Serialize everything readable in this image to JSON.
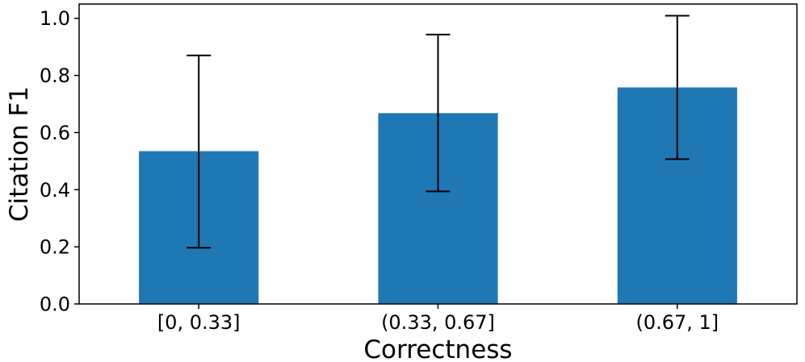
{
  "chart_data": {
    "type": "bar",
    "title": "",
    "xlabel": "Correctness",
    "ylabel": "Citation F1",
    "categories": [
      "[0, 0.33]",
      "(0.33, 0.67]",
      "(0.67, 1]"
    ],
    "values": [
      0.535,
      0.668,
      0.758
    ],
    "error_low": [
      0.197,
      0.394,
      0.507
    ],
    "error_high": [
      0.87,
      0.943,
      1.009
    ],
    "ylim": [
      0.0,
      1.05
    ],
    "yticks": [
      0.0,
      0.2,
      0.4,
      0.6,
      0.8,
      1.0
    ],
    "ytick_labels": [
      "0.0",
      "0.2",
      "0.4",
      "0.6",
      "0.8",
      "1.0"
    ],
    "grid": false,
    "legend": "none",
    "bar_color": "#1f77b4",
    "error_color": "#000000"
  }
}
